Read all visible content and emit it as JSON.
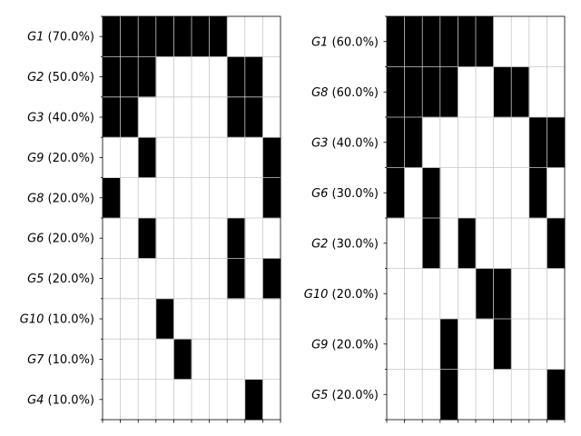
{
  "chart_data": [
    {
      "type": "heatmap",
      "columns": 10,
      "row_labels": [
        {
          "name": "G1",
          "pct": "(70.0%)"
        },
        {
          "name": "G2",
          "pct": "(50.0%)"
        },
        {
          "name": "G3",
          "pct": "(40.0%)"
        },
        {
          "name": "G9",
          "pct": "(20.0%)"
        },
        {
          "name": "G8",
          "pct": "(20.0%)"
        },
        {
          "name": "G6",
          "pct": "(20.0%)"
        },
        {
          "name": "G5",
          "pct": "(20.0%)"
        },
        {
          "name": "G10",
          "pct": "(10.0%)"
        },
        {
          "name": "G7",
          "pct": "(10.0%)"
        },
        {
          "name": "G4",
          "pct": "(10.0%)"
        }
      ],
      "matrix": [
        [
          1,
          1,
          1,
          1,
          1,
          1,
          1,
          0,
          0,
          0
        ],
        [
          1,
          1,
          1,
          0,
          0,
          0,
          0,
          1,
          1,
          0
        ],
        [
          1,
          1,
          0,
          0,
          0,
          0,
          0,
          1,
          1,
          0
        ],
        [
          0,
          0,
          1,
          0,
          0,
          0,
          0,
          0,
          0,
          1
        ],
        [
          1,
          0,
          0,
          0,
          0,
          0,
          0,
          0,
          0,
          1
        ],
        [
          0,
          0,
          1,
          0,
          0,
          0,
          0,
          1,
          0,
          0
        ],
        [
          0,
          0,
          0,
          0,
          0,
          0,
          0,
          1,
          0,
          1
        ],
        [
          0,
          0,
          0,
          1,
          0,
          0,
          0,
          0,
          0,
          0
        ],
        [
          0,
          0,
          0,
          0,
          1,
          0,
          0,
          0,
          0,
          0
        ],
        [
          0,
          0,
          0,
          0,
          0,
          0,
          0,
          0,
          1,
          0
        ]
      ],
      "grid": true,
      "colors": {
        "filled": "#000000",
        "empty": "#ffffff",
        "grid": "#c8c8c8"
      }
    },
    {
      "type": "heatmap",
      "columns": 10,
      "row_labels": [
        {
          "name": "G1",
          "pct": "(60.0%)"
        },
        {
          "name": "G8",
          "pct": "(60.0%)"
        },
        {
          "name": "G3",
          "pct": "(40.0%)"
        },
        {
          "name": "G6",
          "pct": "(30.0%)"
        },
        {
          "name": "G2",
          "pct": "(30.0%)"
        },
        {
          "name": "G10",
          "pct": "(20.0%)"
        },
        {
          "name": "G9",
          "pct": "(20.0%)"
        },
        {
          "name": "G5",
          "pct": "(20.0%)"
        }
      ],
      "matrix": [
        [
          1,
          1,
          1,
          1,
          1,
          1,
          0,
          0,
          0,
          0
        ],
        [
          1,
          1,
          1,
          1,
          0,
          0,
          1,
          1,
          0,
          0
        ],
        [
          1,
          1,
          0,
          0,
          0,
          0,
          0,
          0,
          1,
          1
        ],
        [
          1,
          0,
          1,
          0,
          0,
          0,
          0,
          0,
          1,
          0
        ],
        [
          0,
          0,
          1,
          0,
          1,
          0,
          0,
          0,
          0,
          1
        ],
        [
          0,
          0,
          0,
          0,
          0,
          1,
          1,
          0,
          0,
          0
        ],
        [
          0,
          0,
          0,
          1,
          0,
          0,
          1,
          0,
          0,
          0
        ],
        [
          0,
          0,
          0,
          1,
          0,
          0,
          0,
          0,
          0,
          1
        ]
      ],
      "grid": true,
      "colors": {
        "filled": "#000000",
        "empty": "#ffffff",
        "grid": "#c8c8c8"
      }
    }
  ]
}
